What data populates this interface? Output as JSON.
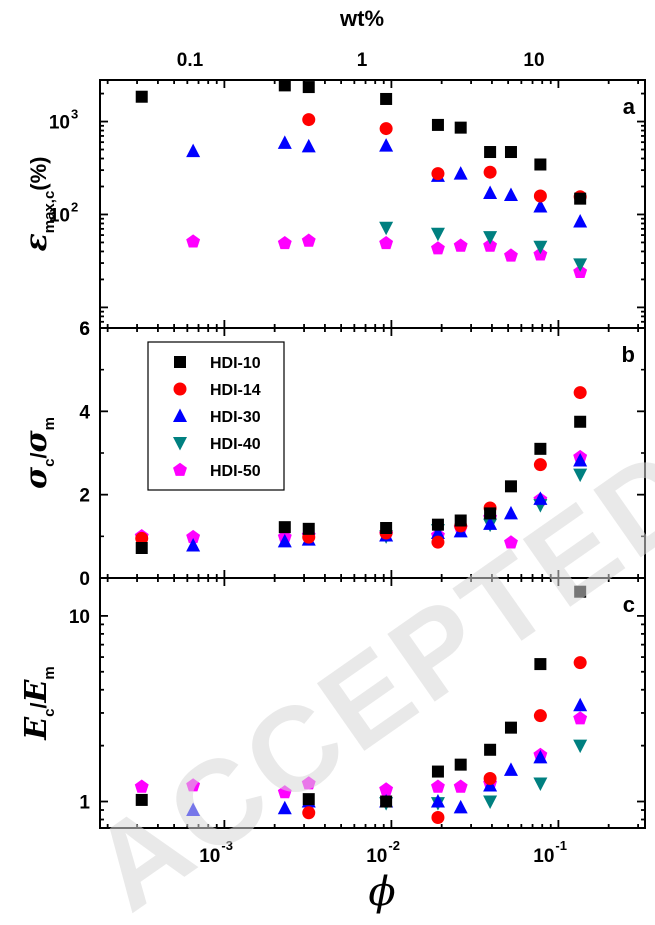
{
  "watermark": "ACCEPTED MANUSCRIPT",
  "top_axis": {
    "label": "wt%",
    "tick_labels": [
      "0.1",
      "1",
      "10"
    ],
    "ticks_wt": [
      0.1,
      1,
      10
    ]
  },
  "x_axis": {
    "label": "ϕ",
    "scale": "log",
    "range": [
      0.00018,
      0.33
    ],
    "tick_labels": [
      {
        "base": "10",
        "exp": "-3"
      },
      {
        "base": "10",
        "exp": "-2"
      },
      {
        "base": "10",
        "exp": "-1"
      }
    ],
    "ticks": [
      0.001,
      0.01,
      0.1
    ]
  },
  "colors": {
    "HDI-10": "#000000",
    "HDI-14": "#ff0000",
    "HDI-30": "#0000ff",
    "HDI-40": "#008080",
    "HDI-50": "#ff00ff"
  },
  "markers": {
    "HDI-10": "square",
    "HDI-14": "circle",
    "HDI-30": "triangle-up",
    "HDI-40": "triangle-down",
    "HDI-50": "pentagon"
  },
  "legend": {
    "placement": "panel-b-top-left",
    "entries": [
      "HDI-10",
      "HDI-14",
      "HDI-30",
      "HDI-40",
      "HDI-50"
    ]
  },
  "chart_data": [
    {
      "type": "scatter",
      "panel_label": "a",
      "ylabel": {
        "main": "ε",
        "sub": "max,c",
        "suffix": "(%)"
      },
      "yscale": "log",
      "ylim": [
        6,
        2800
      ],
      "y_tick_labels": [
        {
          "value": 100,
          "base": "10",
          "exp": "2"
        },
        {
          "value": 1000,
          "base": "10",
          "exp": "3"
        },
        {
          "value": 6,
          "text": "6"
        }
      ],
      "series": [
        {
          "name": "HDI-10",
          "x": [
            0.00032,
            0.0023,
            0.0032,
            0.0093,
            0.019,
            0.026,
            0.039,
            0.052,
            0.078,
            0.135
          ],
          "y": [
            1850,
            2450,
            2350,
            1750,
            920,
            860,
            470,
            470,
            345,
            148
          ]
        },
        {
          "name": "HDI-14",
          "x": [
            0.0032,
            0.0093,
            0.019,
            0.039,
            0.078,
            0.135
          ],
          "y": [
            1050,
            840,
            275,
            285,
            158,
            155
          ]
        },
        {
          "name": "HDI-30",
          "x": [
            0.00065,
            0.0023,
            0.0032,
            0.0093,
            0.019,
            0.026,
            0.039,
            0.052,
            0.078,
            0.135
          ],
          "y": [
            480,
            590,
            540,
            550,
            260,
            275,
            170,
            162,
            122,
            84
          ]
        },
        {
          "name": "HDI-40",
          "x": [
            0.0093,
            0.019,
            0.039,
            0.078,
            0.135
          ],
          "y": [
            72,
            62,
            57,
            45,
            29
          ]
        },
        {
          "name": "HDI-50",
          "x": [
            0.00065,
            0.0023,
            0.0032,
            0.0093,
            0.019,
            0.026,
            0.039,
            0.052,
            0.078,
            0.135
          ],
          "y": [
            51,
            49,
            52,
            49,
            43,
            46,
            46,
            36,
            37,
            24
          ]
        }
      ]
    },
    {
      "type": "scatter",
      "panel_label": "b",
      "ylabel": {
        "main": "σ",
        "sub": "c",
        "sep": "/",
        "main2": "σ",
        "sub2": "m"
      },
      "yscale": "linear",
      "ylim": [
        0,
        6
      ],
      "y_ticks": [
        0,
        2,
        4,
        6
      ],
      "series": [
        {
          "name": "HDI-10",
          "x": [
            0.00032,
            0.0023,
            0.0032,
            0.0093,
            0.019,
            0.026,
            0.039,
            0.052,
            0.078,
            0.135
          ],
          "y": [
            0.72,
            1.22,
            1.18,
            1.2,
            1.28,
            1.38,
            1.55,
            2.2,
            3.1,
            3.75
          ]
        },
        {
          "name": "HDI-14",
          "x": [
            0.00032,
            0.0032,
            0.0093,
            0.019,
            0.026,
            0.039,
            0.078,
            0.135
          ],
          "y": [
            0.95,
            0.98,
            1.08,
            0.86,
            1.25,
            1.68,
            2.72,
            4.45
          ]
        },
        {
          "name": "HDI-30",
          "x": [
            0.00065,
            0.0023,
            0.0032,
            0.0093,
            0.019,
            0.026,
            0.039,
            0.052,
            0.078,
            0.135
          ],
          "y": [
            0.78,
            0.88,
            0.92,
            1.02,
            1.08,
            1.12,
            1.3,
            1.55,
            1.9,
            2.82
          ]
        },
        {
          "name": "HDI-40",
          "x": [
            0.0093,
            0.019,
            0.039,
            0.078,
            0.135
          ],
          "y": [
            1.0,
            1.15,
            1.28,
            1.75,
            2.48
          ]
        },
        {
          "name": "HDI-50",
          "x": [
            0.00032,
            0.00065,
            0.0023,
            0.0032,
            0.0093,
            0.019,
            0.026,
            0.039,
            0.052,
            0.078,
            0.135
          ],
          "y": [
            1.0,
            0.98,
            0.98,
            1.02,
            1.05,
            1.02,
            1.2,
            1.45,
            0.85,
            1.88,
            2.9
          ]
        }
      ]
    },
    {
      "type": "scatter",
      "panel_label": "c",
      "ylabel": {
        "main": "E",
        "sub": "c",
        "sep": "/",
        "main2": "E",
        "sub2": "m"
      },
      "yscale": "log",
      "ylim": [
        0.72,
        16
      ],
      "y_tick_labels": [
        {
          "value": 1,
          "text": "1"
        },
        {
          "value": 10,
          "text": "10"
        }
      ],
      "series": [
        {
          "name": "HDI-10",
          "x": [
            0.00032,
            0.0032,
            0.0093,
            0.019,
            0.026,
            0.039,
            0.052,
            0.078,
            0.135
          ],
          "y": [
            1.02,
            1.03,
            1.0,
            1.45,
            1.58,
            1.9,
            2.5,
            5.5,
            13.5
          ]
        },
        {
          "name": "HDI-14",
          "x": [
            0.0032,
            0.019,
            0.039,
            0.078,
            0.135
          ],
          "y": [
            0.87,
            0.82,
            1.33,
            2.9,
            5.6
          ]
        },
        {
          "name": "HDI-30",
          "x": [
            0.00065,
            0.0023,
            0.0032,
            0.0093,
            0.019,
            0.026,
            0.039,
            0.052,
            0.078,
            0.135
          ],
          "y": [
            0.9,
            0.92,
            1.0,
            1.0,
            1.0,
            0.93,
            1.22,
            1.48,
            1.73,
            3.3
          ]
        },
        {
          "name": "HDI-40",
          "x": [
            0.0093,
            0.019,
            0.039,
            0.078,
            0.135
          ],
          "y": [
            0.98,
            0.98,
            1.0,
            1.25,
            2.0
          ]
        },
        {
          "name": "HDI-50",
          "x": [
            0.00032,
            0.00065,
            0.0023,
            0.0032,
            0.0093,
            0.019,
            0.026,
            0.039,
            0.078,
            0.135
          ],
          "y": [
            1.2,
            1.22,
            1.12,
            1.25,
            1.16,
            1.2,
            1.2,
            1.25,
            1.78,
            2.8
          ]
        }
      ]
    }
  ]
}
